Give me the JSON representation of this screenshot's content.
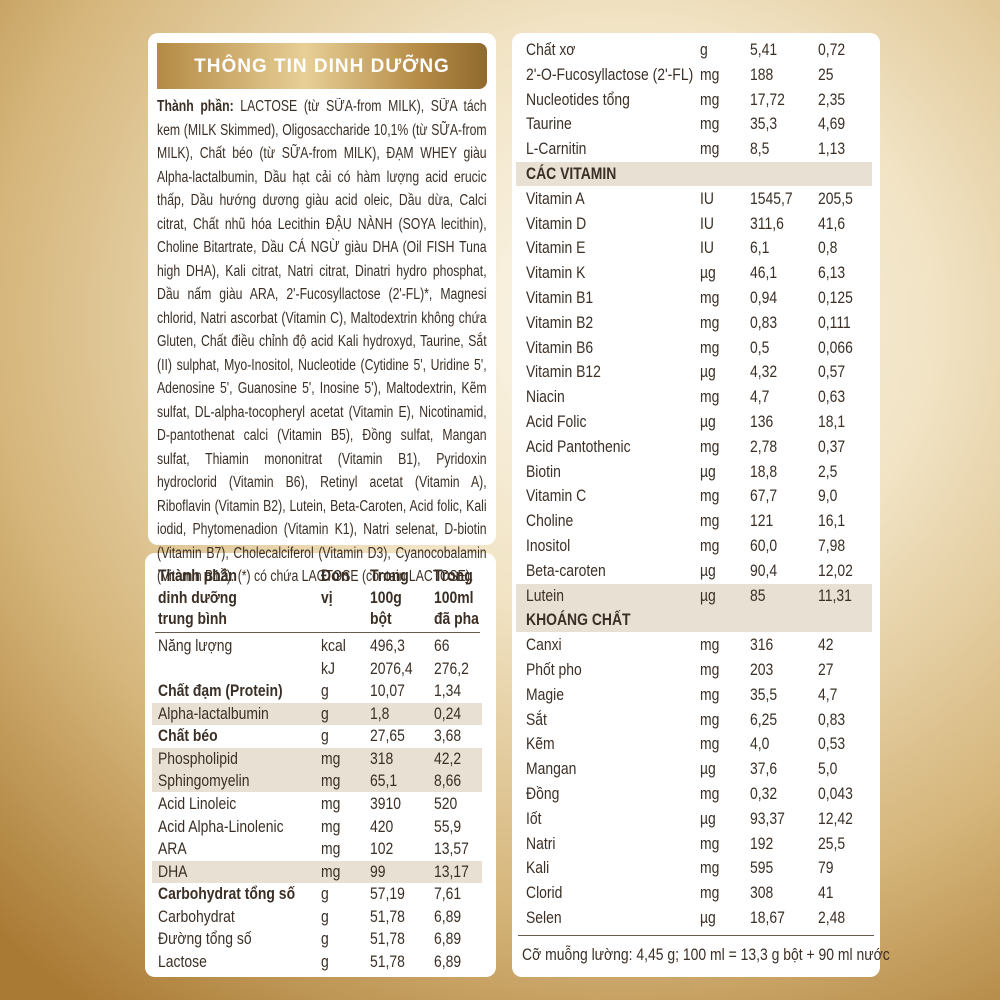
{
  "title": "THÔNG TIN DINH DƯỠNG",
  "ingredients": {
    "label": "Thành phần:",
    "text": "LACTOSE (từ SỮA-from MILK), SỮA tách kem (MILK Skimmed), Oligosaccharide 10,1% (từ SỮA-from MILK), Chất béo (từ SỮA-from MILK), ĐẠM WHEY giàu Alpha-lactalbumin, Dầu hạt cải có hàm lượng acid erucic thấp, Dầu hướng dương giàu acid oleic, Dầu dừa, Calci citrat, Chất nhũ hóa Lecithin ĐẬU NÀNH (SOYA lecithin), Choline Bitartrate, Dầu CÁ NGỪ giàu DHA (Oil FISH Tuna high DHA), Kali citrat, Natri citrat, Dinatri hydro phosphat, Dầu nấm giàu ARA, 2'-Fucosyllactose (2'-FL)*, Magnesi chlorid, Natri ascorbat (Vitamin C), Maltodextrin không chứa Gluten, Chất điều chỉnh độ acid Kali hydroxyd, Taurine, Sắt (II) sulphat, Myo-Inositol, Nucleotide (Cytidine 5', Uridine 5', Adenosine 5', Guanosine 5', Inosine 5'), Maltodextrin, Kẽm sulfat, DL-alpha-tocopheryl acetat (Vitamin E), Nicotinamid, D-pantothenat calci (Vitamin B5), Đồng sulfat, Mangan sulfat, Thiamin mononitrat (Vitamin B1), Pyridoxin hydroclorid (Vitamin B6), Retinyl acetat (Vitamin A), Riboflavin (Vitamin B2), Lutein, Beta-Caroten, Acid folic, Kali iodid, Phytomenadion (Vitamin K1), Natri selenat, D-biotin (Vitamin B7), Cholecalciferol (Vitamin D3), Cyanocobalamin (Vitamin B12). (*) có chứa LACTOSE (contain LACTOSE)."
  },
  "left_table": {
    "header": [
      [
        "Thành phần",
        "dinh dưỡng",
        "trung bình"
      ],
      [
        "Đơn",
        "vị"
      ],
      [
        "Trong",
        "100g",
        "bột"
      ],
      [
        "Trong",
        "100ml",
        "đã pha"
      ]
    ],
    "rows": [
      {
        "name": "Năng lượng",
        "unit": "kcal",
        "per_100g": "496,3",
        "per_100ml": "66"
      },
      {
        "unit": "kJ",
        "per_100g": "2076,4",
        "per_100ml": "276,2"
      },
      {
        "name": "Chất đạm (Protein)",
        "unit": "g",
        "per_100g": "10,07",
        "per_100ml": "1,34"
      },
      {
        "name": "Alpha-lactalbumin",
        "unit": "g",
        "per_100g": "1,8",
        "per_100ml": "0,24"
      },
      {
        "name": "Chất béo",
        "unit": "g",
        "per_100g": "27,65",
        "per_100ml": "3,68"
      },
      {
        "name": "Phospholipid",
        "unit": "mg",
        "per_100g": "318",
        "per_100ml": "42,2"
      },
      {
        "name": "Sphingomyelin",
        "unit": "mg",
        "per_100g": "65,1",
        "per_100ml": "8,66"
      },
      {
        "name": "Acid Linoleic",
        "unit": "mg",
        "per_100g": "3910",
        "per_100ml": "520"
      },
      {
        "name": "Acid Alpha-Linolenic",
        "unit": "mg",
        "per_100g": "420",
        "per_100ml": "55,9"
      },
      {
        "name": "ARA",
        "unit": "mg",
        "per_100g": "102",
        "per_100ml": "13,57"
      },
      {
        "name": "DHA",
        "unit": "mg",
        "per_100g": "99",
        "per_100ml": "13,17"
      },
      {
        "name": "Carbohydrat tổng số",
        "unit": "g",
        "per_100g": "57,19",
        "per_100ml": "7,61"
      },
      {
        "name": "Carbohydrat",
        "unit": "g",
        "per_100g": "51,78",
        "per_100ml": "6,89"
      },
      {
        "name": "Đường tổng số",
        "unit": "g",
        "per_100g": "51,78",
        "per_100ml": "6,89"
      },
      {
        "name": "Lactose",
        "unit": "g",
        "per_100g": "51,78",
        "per_100ml": "6,89"
      }
    ]
  },
  "right_table": {
    "sections": [
      {
        "rows": [
          {
            "name": "Chất xơ",
            "unit": "g",
            "per_100g": "5,41",
            "per_100ml": "0,72"
          },
          {
            "name": "2'-O-Fucosyllactose (2'-FL)",
            "unit": "mg",
            "per_100g": "188",
            "per_100ml": "25"
          },
          {
            "name": "Nucleotides tổng",
            "unit": "mg",
            "per_100g": "17,72",
            "per_100ml": "2,35"
          },
          {
            "name": "Taurine",
            "unit": "mg",
            "per_100g": "35,3",
            "per_100ml": "4,69"
          },
          {
            "name": "L-Carnitin",
            "unit": "mg",
            "per_100g": "8,5",
            "per_100ml": "1,13"
          }
        ]
      },
      {
        "title": "CÁC VITAMIN",
        "rows": [
          {
            "name": "Vitamin A",
            "unit": "IU",
            "per_100g": "1545,7",
            "per_100ml": "205,5"
          },
          {
            "name": "Vitamin D",
            "unit": "IU",
            "per_100g": "311,6",
            "per_100ml": "41,6"
          },
          {
            "name": "Vitamin E",
            "unit": "IU",
            "per_100g": "6,1",
            "per_100ml": "0,8"
          },
          {
            "name": "Vitamin K",
            "unit": "µg",
            "per_100g": "46,1",
            "per_100ml": "6,13"
          },
          {
            "name": "Vitamin B1",
            "unit": "mg",
            "per_100g": "0,94",
            "per_100ml": "0,125"
          },
          {
            "name": "Vitamin B2",
            "unit": "mg",
            "per_100g": "0,83",
            "per_100ml": "0,111"
          },
          {
            "name": "Vitamin B6",
            "unit": "mg",
            "per_100g": "0,5",
            "per_100ml": "0,066"
          },
          {
            "name": "Vitamin B12",
            "unit": "µg",
            "per_100g": "4,32",
            "per_100ml": "0,57"
          },
          {
            "name": "Niacin",
            "unit": "mg",
            "per_100g": "4,7",
            "per_100ml": "0,63"
          },
          {
            "name": "Acid Folic",
            "unit": "µg",
            "per_100g": "136",
            "per_100ml": "18,1"
          },
          {
            "name": "Acid Pantothenic",
            "unit": "mg",
            "per_100g": "2,78",
            "per_100ml": "0,37"
          },
          {
            "name": "Biotin",
            "unit": "µg",
            "per_100g": "18,8",
            "per_100ml": "2,5"
          },
          {
            "name": "Vitamin C",
            "unit": "mg",
            "per_100g": "67,7",
            "per_100ml": "9,0"
          },
          {
            "name": "Choline",
            "unit": "mg",
            "per_100g": "121",
            "per_100ml": "16,1"
          },
          {
            "name": "Inositol",
            "unit": "mg",
            "per_100g": "60,0",
            "per_100ml": "7,98"
          },
          {
            "name": "Beta-caroten",
            "unit": "µg",
            "per_100g": "90,4",
            "per_100ml": "12,02"
          },
          {
            "name": "Lutein",
            "unit": "µg",
            "per_100g": "85",
            "per_100ml": "11,31"
          }
        ]
      },
      {
        "title": "KHOÁNG CHẤT",
        "rows": [
          {
            "name": "Canxi",
            "unit": "mg",
            "per_100g": "316",
            "per_100ml": "42"
          },
          {
            "name": "Phốt pho",
            "unit": "mg",
            "per_100g": "203",
            "per_100ml": "27"
          },
          {
            "name": "Magie",
            "unit": "mg",
            "per_100g": "35,5",
            "per_100ml": "4,7"
          },
          {
            "name": "Sắt",
            "unit": "mg",
            "per_100g": "6,25",
            "per_100ml": "0,83"
          },
          {
            "name": "Kẽm",
            "unit": "mg",
            "per_100g": "4,0",
            "per_100ml": "0,53"
          },
          {
            "name": "Mangan",
            "unit": "µg",
            "per_100g": "37,6",
            "per_100ml": "5,0"
          },
          {
            "name": "Đồng",
            "unit": "mg",
            "per_100g": "0,32",
            "per_100ml": "0,043"
          },
          {
            "name": "Iốt",
            "unit": "µg",
            "per_100g": "93,37",
            "per_100ml": "12,42"
          },
          {
            "name": "Natri",
            "unit": "mg",
            "per_100g": "192",
            "per_100ml": "25,5"
          },
          {
            "name": "Kali",
            "unit": "mg",
            "per_100g": "595",
            "per_100ml": "79"
          },
          {
            "name": "Clorid",
            "unit": "mg",
            "per_100g": "308",
            "per_100ml": "41"
          },
          {
            "name": "Selen",
            "unit": "µg",
            "per_100g": "18,67",
            "per_100ml": "2,48"
          }
        ]
      }
    ],
    "footer": "Cỡ muỗng lường: 4,45 g; 100 ml = 13,3 g bột + 90 ml nước"
  }
}
